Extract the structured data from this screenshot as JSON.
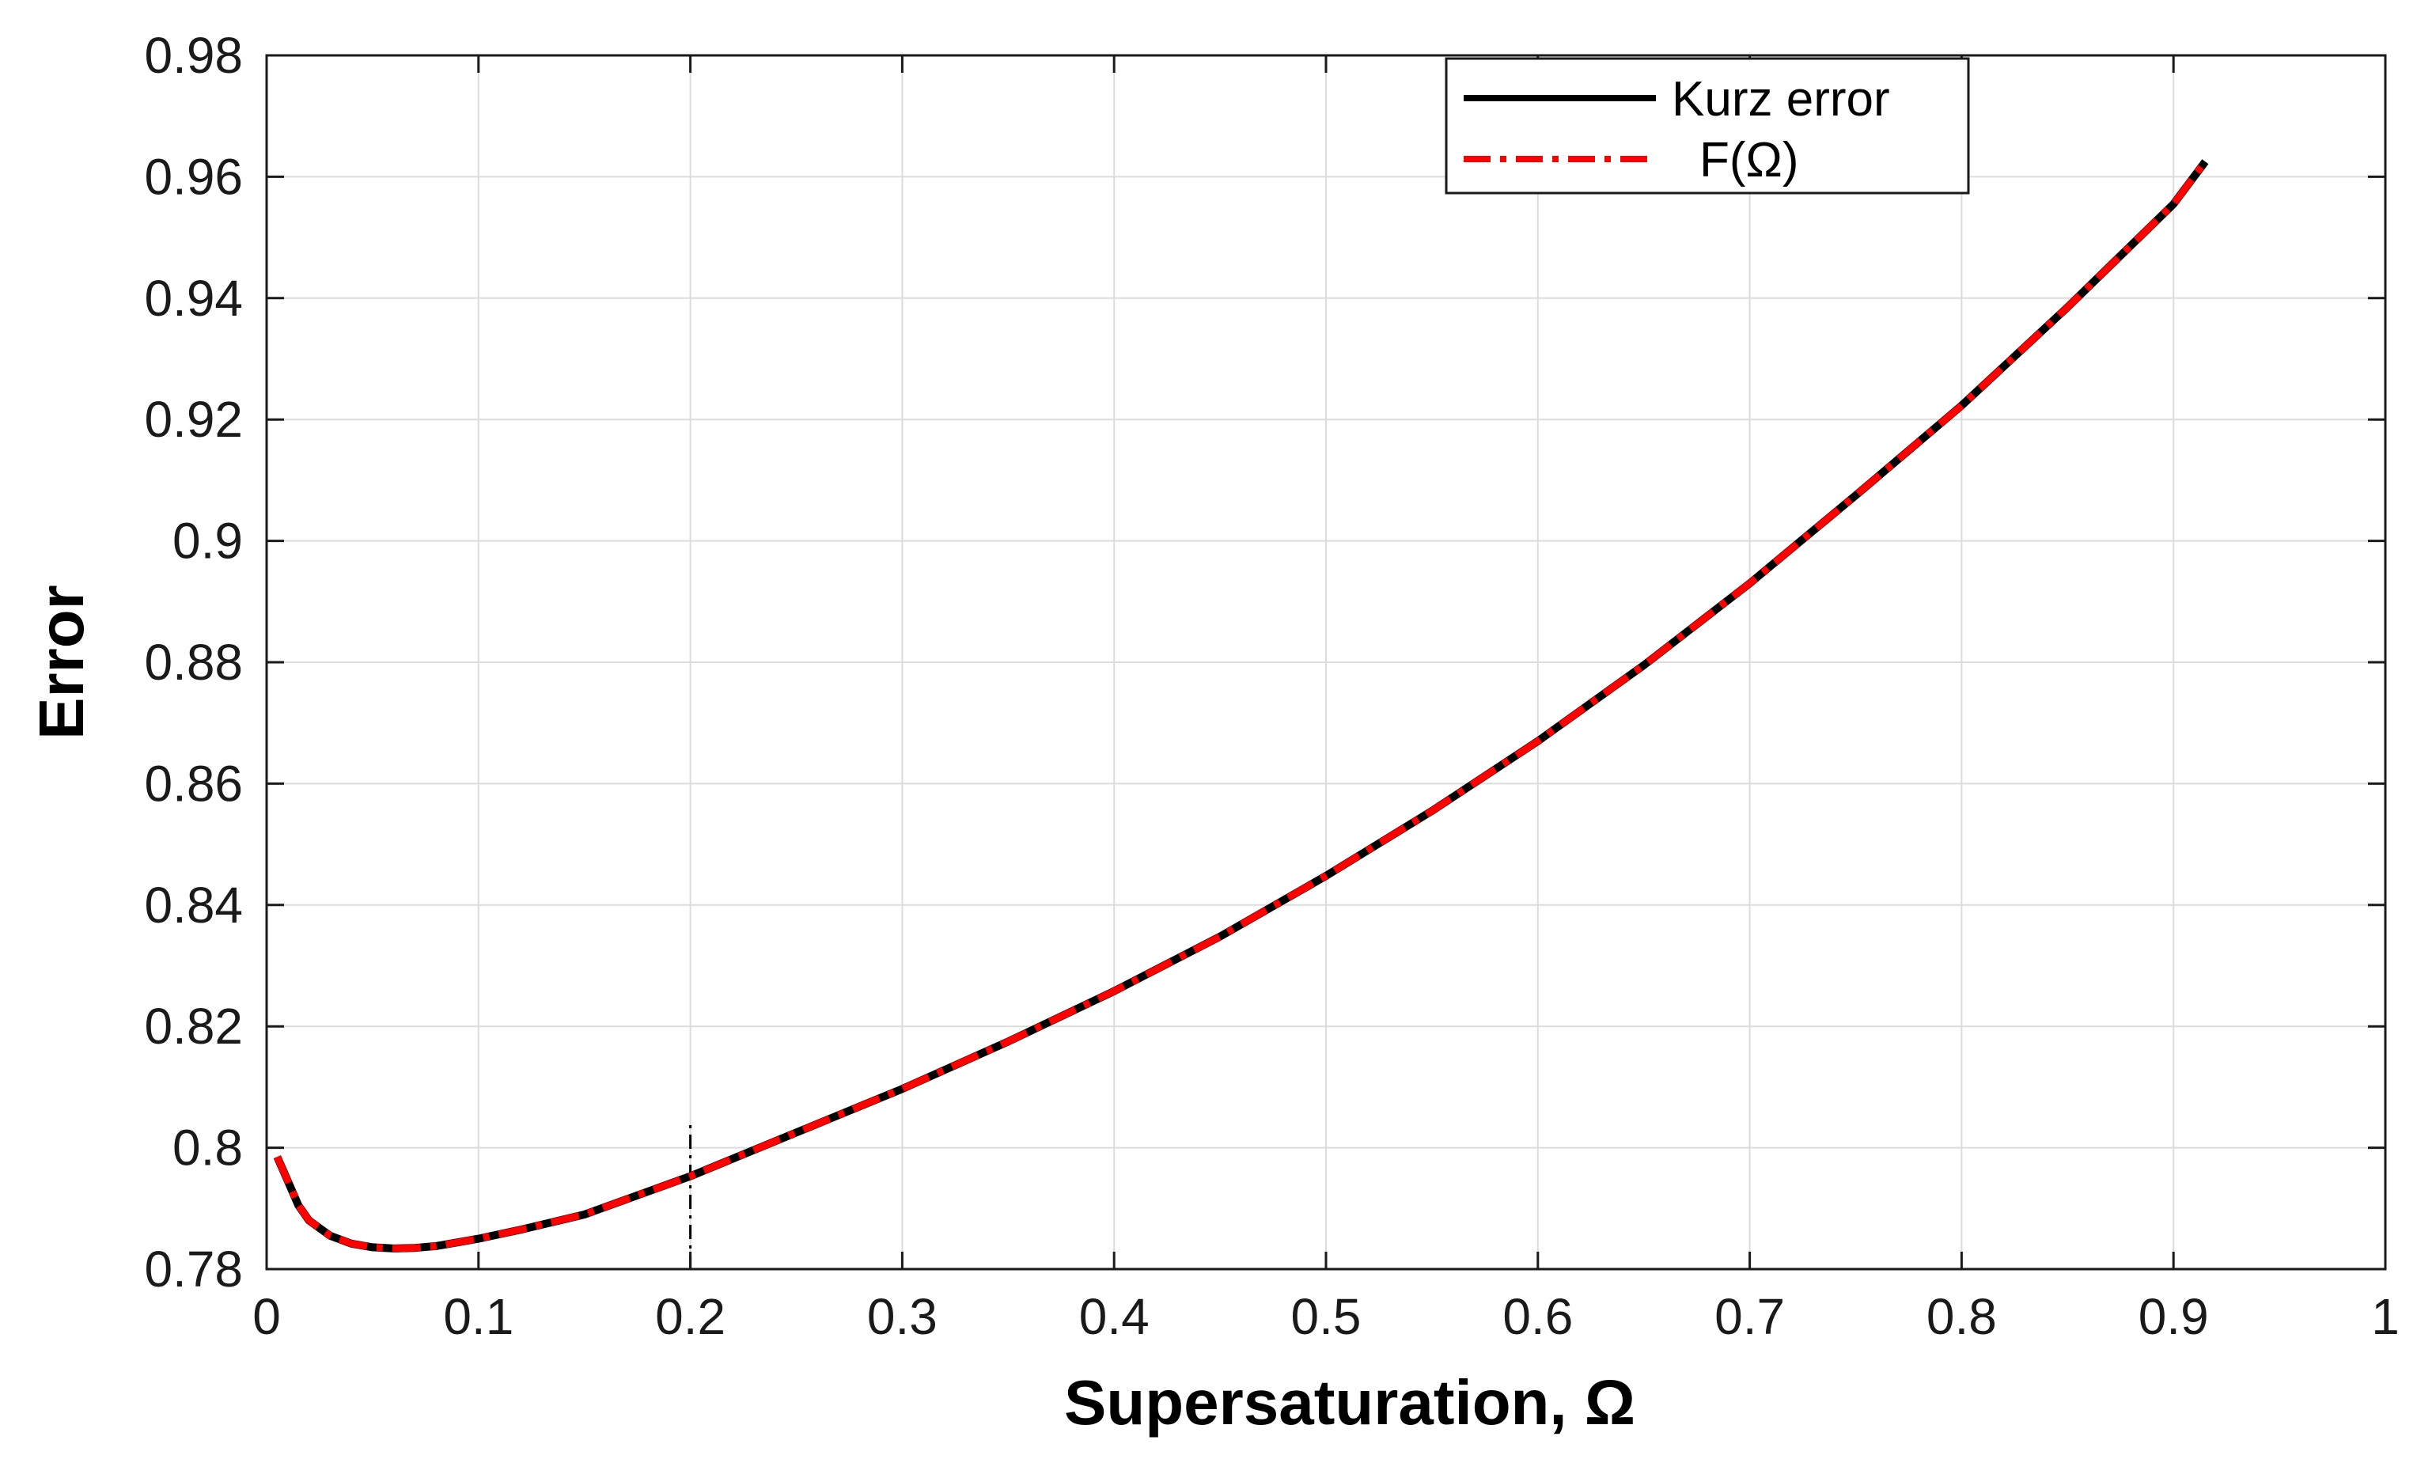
{
  "chart_data": {
    "type": "line",
    "title": "",
    "xlabel": "Supersaturation, Ω",
    "ylabel": "Error",
    "xlim": [
      0,
      1
    ],
    "ylim": [
      0.78,
      0.98
    ],
    "x_ticks": [
      0,
      0.1,
      0.2,
      0.3,
      0.4,
      0.5,
      0.6,
      0.7,
      0.8,
      0.9,
      1
    ],
    "x_tick_labels": [
      "0",
      "0.1",
      "0.2",
      "0.3",
      "0.4",
      "0.5",
      "0.6",
      "0.7",
      "0.8",
      "0.9",
      "1"
    ],
    "y_ticks": [
      0.78,
      0.8,
      0.82,
      0.84,
      0.86,
      0.88,
      0.9,
      0.92,
      0.94,
      0.96,
      0.98
    ],
    "y_tick_labels": [
      "0.78",
      "0.8",
      "0.82",
      "0.84",
      "0.86",
      "0.88",
      "0.9",
      "0.92",
      "0.94",
      "0.96",
      "0.98"
    ],
    "grid": true,
    "legend_position": "top-right",
    "series": [
      {
        "name": "Kurz error",
        "color": "#000000",
        "style": "solid",
        "x": [
          0.005,
          0.01,
          0.015,
          0.02,
          0.03,
          0.04,
          0.05,
          0.06,
          0.07,
          0.08,
          0.1,
          0.12,
          0.15,
          0.2,
          0.25,
          0.3,
          0.35,
          0.4,
          0.45,
          0.5,
          0.55,
          0.6,
          0.65,
          0.7,
          0.75,
          0.8,
          0.85,
          0.9,
          0.915
        ],
        "y": [
          0.7985,
          0.7945,
          0.7905,
          0.788,
          0.7855,
          0.7842,
          0.7836,
          0.7834,
          0.7835,
          0.7838,
          0.785,
          0.7865,
          0.789,
          0.7953,
          0.8025,
          0.8097,
          0.8175,
          0.8258,
          0.8348,
          0.8448,
          0.8555,
          0.867,
          0.8795,
          0.893,
          0.9075,
          0.9223,
          0.9385,
          0.9555,
          0.9625
        ]
      },
      {
        "name": "F(Ω)",
        "color": "#ff0000",
        "style": "dashdot",
        "x": [
          0.005,
          0.01,
          0.015,
          0.02,
          0.03,
          0.04,
          0.05,
          0.06,
          0.07,
          0.08,
          0.1,
          0.12,
          0.15,
          0.2,
          0.25,
          0.3,
          0.35,
          0.4,
          0.45,
          0.5,
          0.55,
          0.6,
          0.65,
          0.7,
          0.75,
          0.8,
          0.85,
          0.9,
          0.915
        ],
        "y": [
          0.7985,
          0.7945,
          0.7905,
          0.788,
          0.7855,
          0.7842,
          0.7836,
          0.7834,
          0.7835,
          0.7838,
          0.785,
          0.7865,
          0.789,
          0.7953,
          0.8025,
          0.8097,
          0.8175,
          0.8258,
          0.8348,
          0.8448,
          0.8555,
          0.867,
          0.8795,
          0.893,
          0.9075,
          0.9223,
          0.9385,
          0.9555,
          0.9625
        ]
      }
    ],
    "annotations": [
      {
        "type": "vertical-dashdot-line",
        "x": 0.2,
        "y_range": [
          0.78,
          0.8045
        ],
        "color": "#000000"
      }
    ]
  }
}
